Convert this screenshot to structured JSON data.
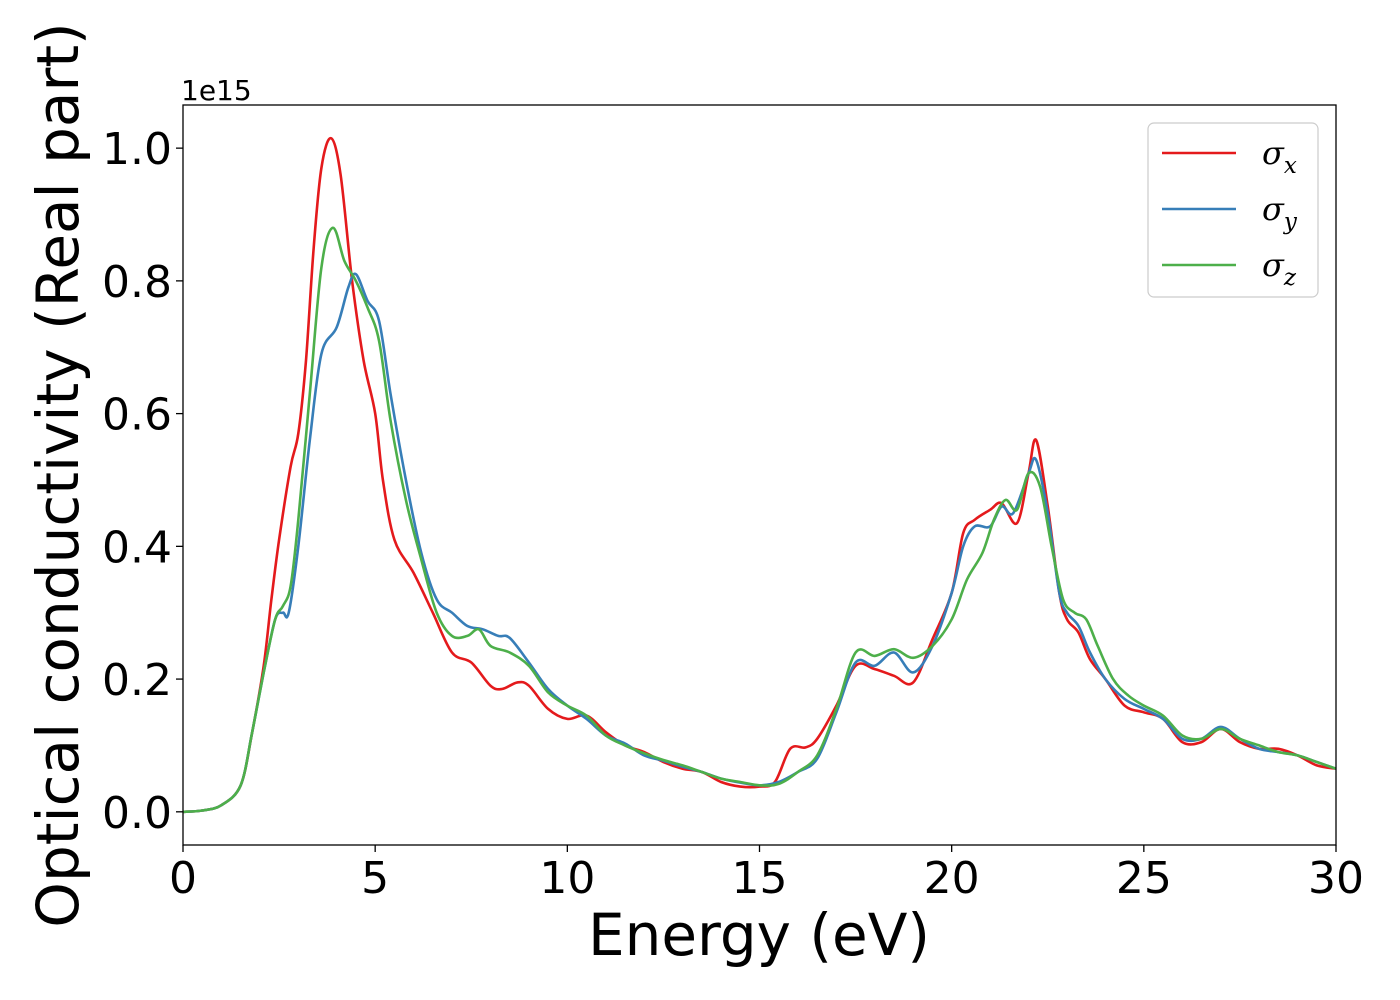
{
  "chart_data": {
    "type": "line",
    "xlabel": "Energy (eV)",
    "ylabel": "Optical conductivity (Real part)",
    "offset_label": "1e15",
    "xlim": [
      0,
      30
    ],
    "ylim": [
      -0.05,
      1.065
    ],
    "x_ticks": [
      0,
      5,
      10,
      15,
      20,
      25,
      30
    ],
    "x_tick_labels": [
      "0",
      "5",
      "10",
      "15",
      "20",
      "25",
      "30"
    ],
    "y_ticks": [
      0.0,
      0.2,
      0.4,
      0.6,
      0.8,
      1.0
    ],
    "y_tick_labels": [
      "0.0",
      "0.2",
      "0.4",
      "0.6",
      "0.8",
      "1.0"
    ],
    "grid": false,
    "legend_position": "top-right",
    "series": [
      {
        "name": "x",
        "label_base": "σ",
        "label_sub": "x",
        "color": "#e41a1c",
        "points": [
          [
            0,
            0
          ],
          [
            0.5,
            0.002
          ],
          [
            1,
            0.01
          ],
          [
            1.5,
            0.04
          ],
          [
            1.8,
            0.12
          ],
          [
            2.1,
            0.22
          ],
          [
            2.3,
            0.32
          ],
          [
            2.5,
            0.41
          ],
          [
            2.8,
            0.52
          ],
          [
            3.0,
            0.57
          ],
          [
            3.2,
            0.68
          ],
          [
            3.4,
            0.85
          ],
          [
            3.6,
            0.97
          ],
          [
            3.85,
            1.015
          ],
          [
            4.1,
            0.96
          ],
          [
            4.4,
            0.8
          ],
          [
            4.7,
            0.68
          ],
          [
            5.0,
            0.6
          ],
          [
            5.2,
            0.5
          ],
          [
            5.5,
            0.41
          ],
          [
            6.0,
            0.36
          ],
          [
            6.5,
            0.3
          ],
          [
            7.0,
            0.24
          ],
          [
            7.5,
            0.225
          ],
          [
            8.0,
            0.19
          ],
          [
            8.3,
            0.185
          ],
          [
            8.7,
            0.195
          ],
          [
            9.0,
            0.19
          ],
          [
            9.5,
            0.155
          ],
          [
            10.0,
            0.14
          ],
          [
            10.5,
            0.145
          ],
          [
            11.0,
            0.12
          ],
          [
            11.5,
            0.1
          ],
          [
            12.0,
            0.09
          ],
          [
            12.5,
            0.075
          ],
          [
            13.0,
            0.065
          ],
          [
            13.5,
            0.06
          ],
          [
            14.0,
            0.045
          ],
          [
            14.5,
            0.038
          ],
          [
            15.0,
            0.038
          ],
          [
            15.4,
            0.045
          ],
          [
            15.8,
            0.095
          ],
          [
            16.2,
            0.097
          ],
          [
            16.5,
            0.11
          ],
          [
            17.0,
            0.16
          ],
          [
            17.5,
            0.22
          ],
          [
            18.0,
            0.215
          ],
          [
            18.5,
            0.205
          ],
          [
            19.0,
            0.195
          ],
          [
            19.5,
            0.26
          ],
          [
            20.0,
            0.33
          ],
          [
            20.3,
            0.42
          ],
          [
            20.6,
            0.44
          ],
          [
            21.0,
            0.455
          ],
          [
            21.3,
            0.465
          ],
          [
            21.7,
            0.435
          ],
          [
            22.0,
            0.51
          ],
          [
            22.2,
            0.56
          ],
          [
            22.5,
            0.46
          ],
          [
            22.8,
            0.33
          ],
          [
            23.0,
            0.29
          ],
          [
            23.3,
            0.27
          ],
          [
            23.6,
            0.23
          ],
          [
            24.0,
            0.2
          ],
          [
            24.5,
            0.16
          ],
          [
            25.0,
            0.15
          ],
          [
            25.5,
            0.14
          ],
          [
            26.0,
            0.105
          ],
          [
            26.5,
            0.105
          ],
          [
            27.0,
            0.125
          ],
          [
            27.5,
            0.105
          ],
          [
            28.0,
            0.095
          ],
          [
            28.5,
            0.095
          ],
          [
            29.0,
            0.085
          ],
          [
            29.5,
            0.07
          ],
          [
            30.0,
            0.065
          ]
        ]
      },
      {
        "name": "y",
        "label_base": "σ",
        "label_sub": "y",
        "color": "#377eb8",
        "points": [
          [
            0,
            0
          ],
          [
            0.5,
            0.002
          ],
          [
            1,
            0.01
          ],
          [
            1.5,
            0.04
          ],
          [
            1.8,
            0.12
          ],
          [
            2.1,
            0.21
          ],
          [
            2.4,
            0.29
          ],
          [
            2.6,
            0.3
          ],
          [
            2.75,
            0.3
          ],
          [
            3.0,
            0.4
          ],
          [
            3.3,
            0.56
          ],
          [
            3.6,
            0.69
          ],
          [
            4.0,
            0.73
          ],
          [
            4.3,
            0.79
          ],
          [
            4.5,
            0.81
          ],
          [
            4.8,
            0.77
          ],
          [
            5.1,
            0.74
          ],
          [
            5.4,
            0.63
          ],
          [
            5.8,
            0.5
          ],
          [
            6.2,
            0.39
          ],
          [
            6.6,
            0.32
          ],
          [
            7.0,
            0.3
          ],
          [
            7.4,
            0.28
          ],
          [
            7.8,
            0.275
          ],
          [
            8.2,
            0.265
          ],
          [
            8.5,
            0.262
          ],
          [
            9.0,
            0.225
          ],
          [
            9.5,
            0.185
          ],
          [
            10.0,
            0.16
          ],
          [
            10.5,
            0.14
          ],
          [
            11.0,
            0.115
          ],
          [
            11.5,
            0.103
          ],
          [
            12.0,
            0.085
          ],
          [
            12.5,
            0.077
          ],
          [
            13.0,
            0.068
          ],
          [
            13.5,
            0.06
          ],
          [
            14.0,
            0.05
          ],
          [
            14.5,
            0.044
          ],
          [
            15.0,
            0.04
          ],
          [
            15.5,
            0.045
          ],
          [
            16.0,
            0.06
          ],
          [
            16.5,
            0.08
          ],
          [
            17.0,
            0.15
          ],
          [
            17.5,
            0.225
          ],
          [
            18.0,
            0.22
          ],
          [
            18.5,
            0.24
          ],
          [
            19.0,
            0.21
          ],
          [
            19.5,
            0.25
          ],
          [
            20.0,
            0.33
          ],
          [
            20.3,
            0.4
          ],
          [
            20.6,
            0.43
          ],
          [
            21.0,
            0.43
          ],
          [
            21.3,
            0.46
          ],
          [
            21.6,
            0.45
          ],
          [
            22.0,
            0.51
          ],
          [
            22.2,
            0.53
          ],
          [
            22.5,
            0.45
          ],
          [
            22.8,
            0.33
          ],
          [
            23.0,
            0.3
          ],
          [
            23.3,
            0.28
          ],
          [
            23.6,
            0.24
          ],
          [
            24.0,
            0.2
          ],
          [
            24.5,
            0.17
          ],
          [
            25.0,
            0.155
          ],
          [
            25.5,
            0.14
          ],
          [
            26.0,
            0.11
          ],
          [
            26.5,
            0.11
          ],
          [
            27.0,
            0.128
          ],
          [
            27.5,
            0.11
          ],
          [
            28.0,
            0.095
          ],
          [
            28.5,
            0.09
          ],
          [
            29.0,
            0.085
          ],
          [
            29.5,
            0.075
          ],
          [
            30.0,
            0.065
          ]
        ]
      },
      {
        "name": "z",
        "label_base": "σ",
        "label_sub": "z",
        "color": "#4daf4a",
        "points": [
          [
            0,
            0
          ],
          [
            0.5,
            0.002
          ],
          [
            1,
            0.01
          ],
          [
            1.5,
            0.04
          ],
          [
            1.8,
            0.12
          ],
          [
            2.1,
            0.21
          ],
          [
            2.4,
            0.29
          ],
          [
            2.6,
            0.31
          ],
          [
            2.8,
            0.34
          ],
          [
            3.0,
            0.44
          ],
          [
            3.3,
            0.63
          ],
          [
            3.6,
            0.82
          ],
          [
            3.9,
            0.88
          ],
          [
            4.2,
            0.83
          ],
          [
            4.5,
            0.8
          ],
          [
            4.8,
            0.76
          ],
          [
            5.1,
            0.71
          ],
          [
            5.4,
            0.59
          ],
          [
            5.8,
            0.47
          ],
          [
            6.2,
            0.38
          ],
          [
            6.6,
            0.3
          ],
          [
            7.0,
            0.265
          ],
          [
            7.4,
            0.265
          ],
          [
            7.7,
            0.275
          ],
          [
            8.0,
            0.25
          ],
          [
            8.5,
            0.24
          ],
          [
            9.0,
            0.22
          ],
          [
            9.5,
            0.18
          ],
          [
            10.0,
            0.16
          ],
          [
            10.5,
            0.145
          ],
          [
            11.0,
            0.115
          ],
          [
            11.5,
            0.1
          ],
          [
            12.0,
            0.088
          ],
          [
            12.5,
            0.078
          ],
          [
            13.0,
            0.07
          ],
          [
            13.5,
            0.06
          ],
          [
            14.0,
            0.05
          ],
          [
            14.5,
            0.045
          ],
          [
            15.0,
            0.04
          ],
          [
            15.5,
            0.042
          ],
          [
            16.0,
            0.06
          ],
          [
            16.5,
            0.085
          ],
          [
            17.0,
            0.155
          ],
          [
            17.5,
            0.24
          ],
          [
            18.0,
            0.235
          ],
          [
            18.5,
            0.245
          ],
          [
            19.0,
            0.232
          ],
          [
            19.5,
            0.25
          ],
          [
            20.0,
            0.29
          ],
          [
            20.4,
            0.35
          ],
          [
            20.8,
            0.39
          ],
          [
            21.1,
            0.44
          ],
          [
            21.4,
            0.47
          ],
          [
            21.7,
            0.455
          ],
          [
            22.0,
            0.51
          ],
          [
            22.3,
            0.49
          ],
          [
            22.6,
            0.4
          ],
          [
            22.9,
            0.32
          ],
          [
            23.2,
            0.3
          ],
          [
            23.5,
            0.29
          ],
          [
            23.8,
            0.25
          ],
          [
            24.2,
            0.2
          ],
          [
            24.6,
            0.175
          ],
          [
            25.0,
            0.16
          ],
          [
            25.5,
            0.145
          ],
          [
            26.0,
            0.115
          ],
          [
            26.5,
            0.11
          ],
          [
            27.0,
            0.125
          ],
          [
            27.5,
            0.11
          ],
          [
            28.0,
            0.1
          ],
          [
            28.5,
            0.09
          ],
          [
            29.0,
            0.085
          ],
          [
            29.5,
            0.075
          ],
          [
            30.0,
            0.065
          ]
        ]
      }
    ]
  }
}
